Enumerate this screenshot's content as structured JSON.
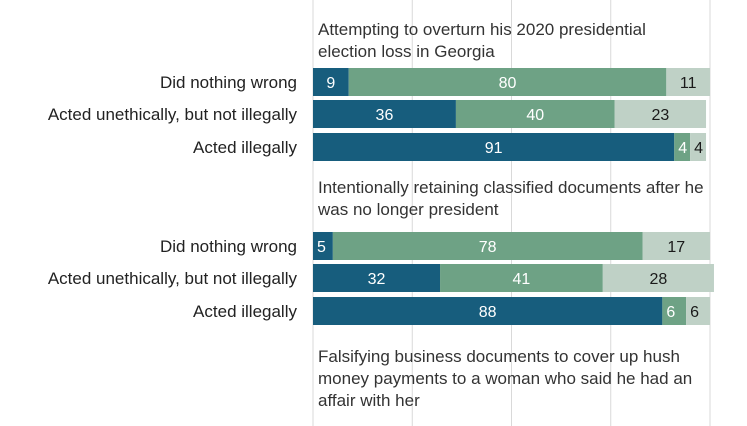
{
  "colors": {
    "segment_1": "#175d7d",
    "segment_2": "#6ea285",
    "segment_3": "#bfd1c6",
    "gridline": "#d9d9d9",
    "label_dark": "#1a1a1a",
    "label_light": "#ffffff"
  },
  "chart_data": {
    "type": "bar",
    "orientation": "horizontal",
    "stacked": true,
    "xlim": [
      0,
      100
    ],
    "grid": true,
    "legend": "none",
    "panels": [
      {
        "title": "Attempting to overturn his 2020 presidential election loss in Georgia",
        "categories": [
          "Did nothing wrong",
          "Acted unethically, but not illegally",
          "Acted illegally"
        ],
        "series": [
          {
            "values": [
              9,
              36,
              91
            ]
          },
          {
            "values": [
              80,
              40,
              4
            ]
          },
          {
            "values": [
              11,
              23,
              4
            ]
          }
        ]
      },
      {
        "title": "Intentionally retaining classified documents after he was no longer president",
        "categories": [
          "Did nothing wrong",
          "Acted unethically, but not illegally",
          "Acted illegally"
        ],
        "series": [
          {
            "values": [
              5,
              32,
              88
            ]
          },
          {
            "values": [
              78,
              41,
              6
            ]
          },
          {
            "values": [
              17,
              28,
              6
            ]
          }
        ]
      },
      {
        "title": "Falsifying business documents to cover up hush money payments to a woman who said he had an affair with her",
        "categories": [],
        "series": []
      }
    ]
  }
}
